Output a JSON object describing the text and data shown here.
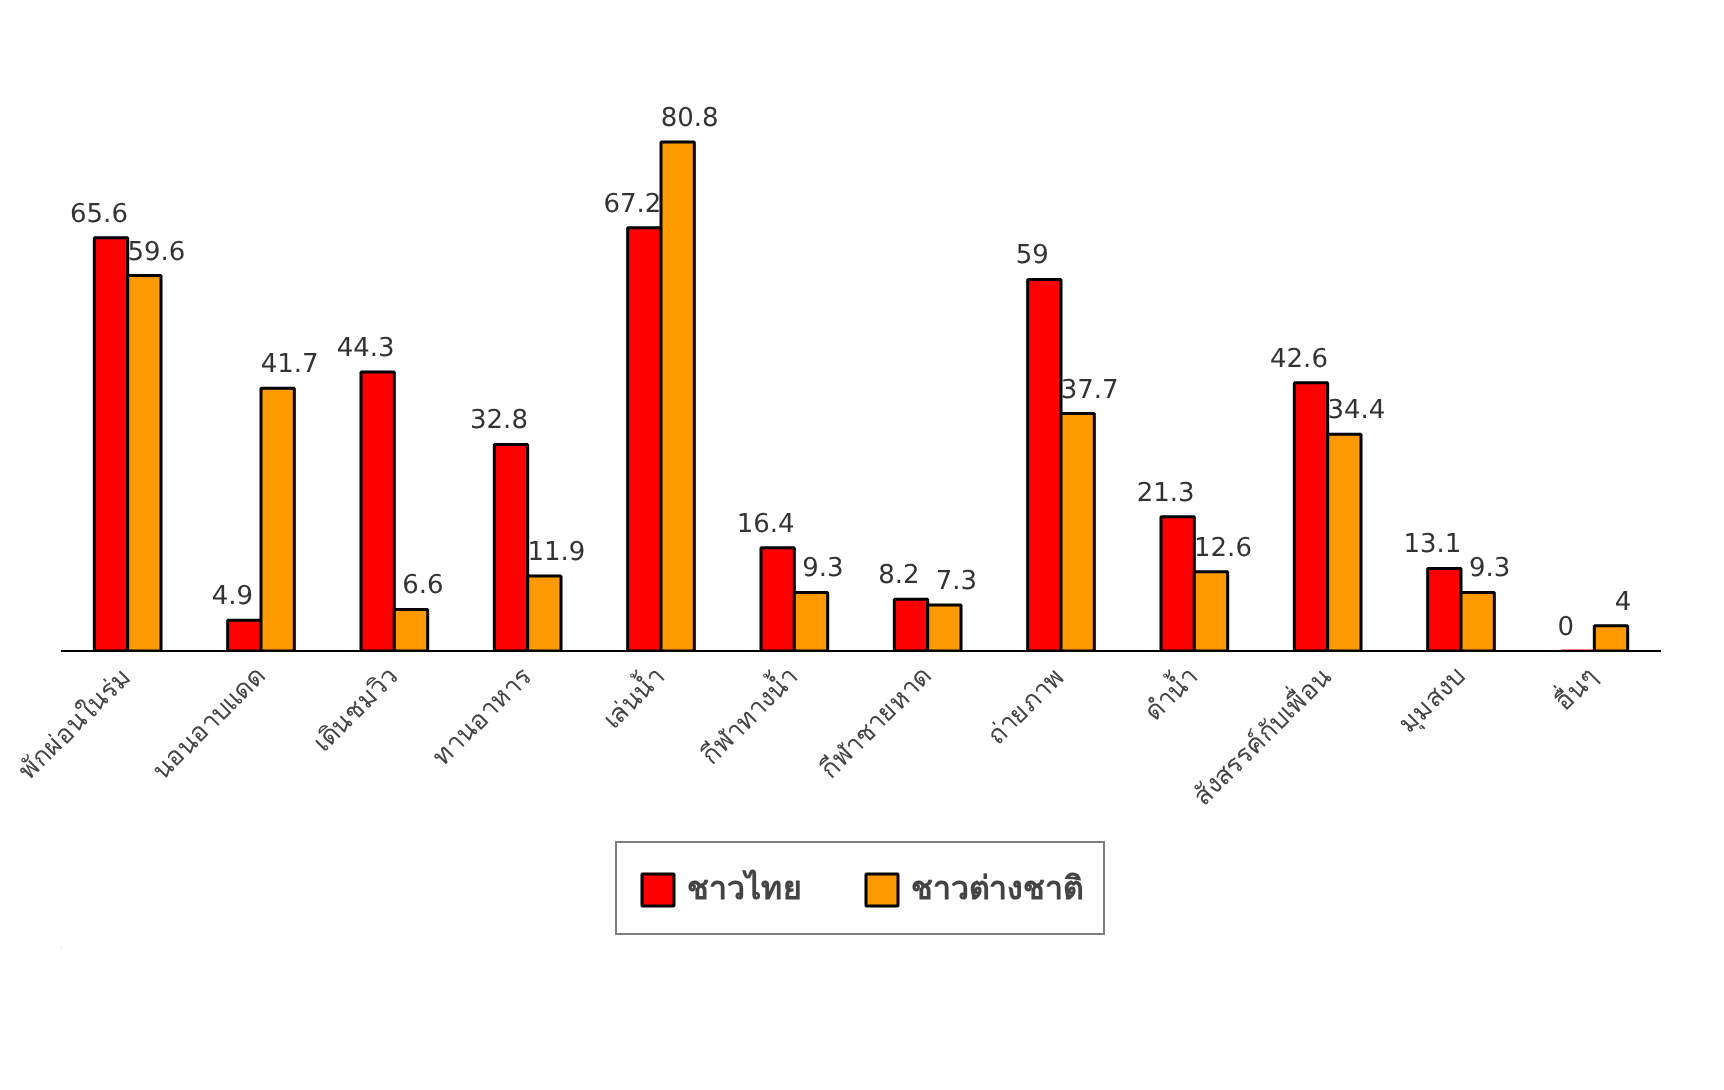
{
  "chart_data": {
    "type": "bar",
    "categories": [
      "พักผ่อนในร่ม",
      "นอนอาบแดด",
      "เดินชมวิว",
      "ทานอาหาร",
      "เล่นน้ำ",
      "กีฬาทางน้ำ",
      "กีฬาชายหาด",
      "ถ่ายภาพ",
      "ดำน้ำ",
      "สังสรรค์กับเพื่อน",
      "มุมสงบ",
      "อื่นๆ"
    ],
    "series": [
      {
        "name": "ชาวไทย",
        "color": "#ff0000",
        "values": [
          65.6,
          4.9,
          44.3,
          32.8,
          67.2,
          16.4,
          8.2,
          59,
          21.3,
          42.6,
          13.1,
          0
        ]
      },
      {
        "name": "ชาวต่างชาติ",
        "color": "#ff9900",
        "values": [
          59.6,
          41.7,
          6.6,
          11.9,
          80.8,
          9.3,
          7.3,
          37.7,
          12.6,
          34.4,
          9.3,
          4
        ]
      }
    ],
    "data_labels": true,
    "legend": "bottom",
    "grid": false
  }
}
